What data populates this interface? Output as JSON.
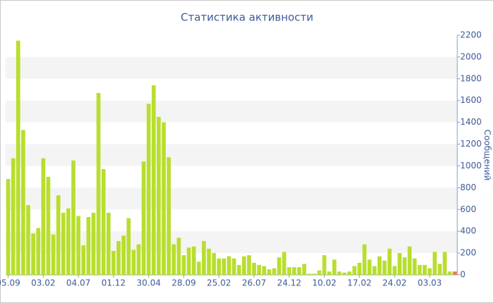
{
  "chart_data": {
    "type": "bar",
    "title": "Статистика активности",
    "y_label": "Сообщений",
    "categories": [
      "05.09",
      null,
      null,
      null,
      null,
      null,
      null,
      "03.02",
      null,
      null,
      null,
      null,
      null,
      null,
      "04.07",
      null,
      null,
      null,
      null,
      null,
      null,
      "01.12",
      null,
      null,
      null,
      null,
      null,
      null,
      "30.04",
      null,
      null,
      null,
      null,
      null,
      null,
      "28.09",
      null,
      null,
      null,
      null,
      null,
      null,
      "25.02",
      null,
      null,
      null,
      null,
      null,
      null,
      "26.07",
      null,
      null,
      null,
      null,
      null,
      null,
      "24.12",
      null,
      null,
      null,
      null,
      null,
      null,
      "10.02",
      null,
      null,
      null,
      null,
      null,
      null,
      "17.02",
      null,
      null,
      null,
      null,
      null,
      null,
      "24.02",
      null,
      null,
      null,
      null,
      null,
      null,
      "03.03",
      null,
      null,
      null,
      null,
      null
    ],
    "values": [
      880,
      1070,
      2150,
      1330,
      640,
      380,
      430,
      1070,
      900,
      370,
      730,
      570,
      610,
      1050,
      540,
      270,
      530,
      570,
      1670,
      970,
      570,
      220,
      310,
      360,
      520,
      230,
      280,
      1040,
      1570,
      1740,
      1450,
      1400,
      1080,
      280,
      340,
      180,
      250,
      260,
      120,
      310,
      240,
      200,
      150,
      150,
      170,
      150,
      90,
      170,
      180,
      110,
      90,
      80,
      50,
      60,
      160,
      210,
      70,
      70,
      70,
      100,
      10,
      10,
      40,
      180,
      30,
      140,
      30,
      20,
      30,
      80,
      110,
      280,
      140,
      80,
      170,
      130,
      240,
      80,
      200,
      160,
      260,
      150,
      90,
      90,
      60,
      210,
      100,
      210,
      30,
      30
    ],
    "color": "#b8de2e",
    "last_color": "#ee7d3a",
    "ylim": [
      0,
      2200
    ],
    "yticks": [
      0,
      200,
      400,
      600,
      800,
      1000,
      1200,
      1400,
      1600,
      1800,
      2000,
      2200
    ],
    "grid": true
  }
}
